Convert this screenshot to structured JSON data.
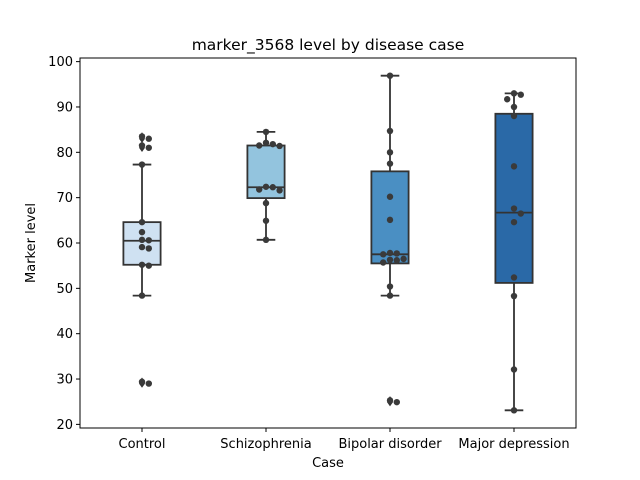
{
  "chart_data": {
    "type": "box",
    "title": "marker_3568 level by disease case",
    "xlabel": "Case",
    "ylabel": "Marker level",
    "ylim": [
      19.2,
      100.8
    ],
    "yticks": [
      20,
      30,
      40,
      50,
      60,
      70,
      80,
      90,
      100
    ],
    "grid": false,
    "categories": [
      "Control",
      "Schizophrenia",
      "Bipolar disorder",
      "Major depression"
    ],
    "colors": [
      "#cfe1f2",
      "#93c4de",
      "#4a8fc3",
      "#2a69a7"
    ],
    "boxes": [
      {
        "category": "Control",
        "q1": 55.2,
        "median": 60.5,
        "q3": 64.6,
        "whisker_low": 48.4,
        "whisker_high": 77.3,
        "outliers": [
          83.5,
          83.0,
          81.5,
          81.0,
          29.4,
          29.0
        ]
      },
      {
        "category": "Schizophrenia",
        "q1": 69.9,
        "median": 72.3,
        "q3": 81.5,
        "whisker_low": 60.7,
        "whisker_high": 84.5,
        "outliers": []
      },
      {
        "category": "Bipolar disorder",
        "q1": 55.5,
        "median": 57.5,
        "q3": 75.8,
        "whisker_low": 48.4,
        "whisker_high": 96.9,
        "outliers": [
          25.3,
          24.9
        ]
      },
      {
        "category": "Major depression",
        "q1": 51.2,
        "median": 66.7,
        "q3": 88.5,
        "whisker_low": 23.1,
        "whisker_high": 93.0,
        "outliers": []
      }
    ],
    "points": [
      {
        "category": "Control",
        "values": [
          83.5,
          83.0,
          81.5,
          81.0,
          77.3,
          64.6,
          62.4,
          60.7,
          60.6,
          59.1,
          58.8,
          55.2,
          55.0,
          48.4,
          29.4,
          29.0
        ]
      },
      {
        "category": "Schizophrenia",
        "values": [
          84.5,
          82.1,
          81.8,
          81.5,
          81.4,
          72.4,
          72.3,
          71.8,
          71.6,
          68.8,
          64.9,
          60.7
        ]
      },
      {
        "category": "Bipolar disorder",
        "values": [
          96.9,
          84.7,
          80.0,
          77.5,
          70.2,
          65.1,
          57.8,
          57.7,
          57.5,
          56.5,
          56.3,
          56.2,
          55.7,
          50.4,
          48.4,
          25.3,
          24.9
        ]
      },
      {
        "category": "Major depression",
        "values": [
          93.0,
          92.7,
          91.7,
          90.0,
          88.0,
          76.9,
          67.6,
          66.5,
          64.6,
          52.4,
          48.3,
          32.1,
          23.1
        ]
      }
    ]
  }
}
